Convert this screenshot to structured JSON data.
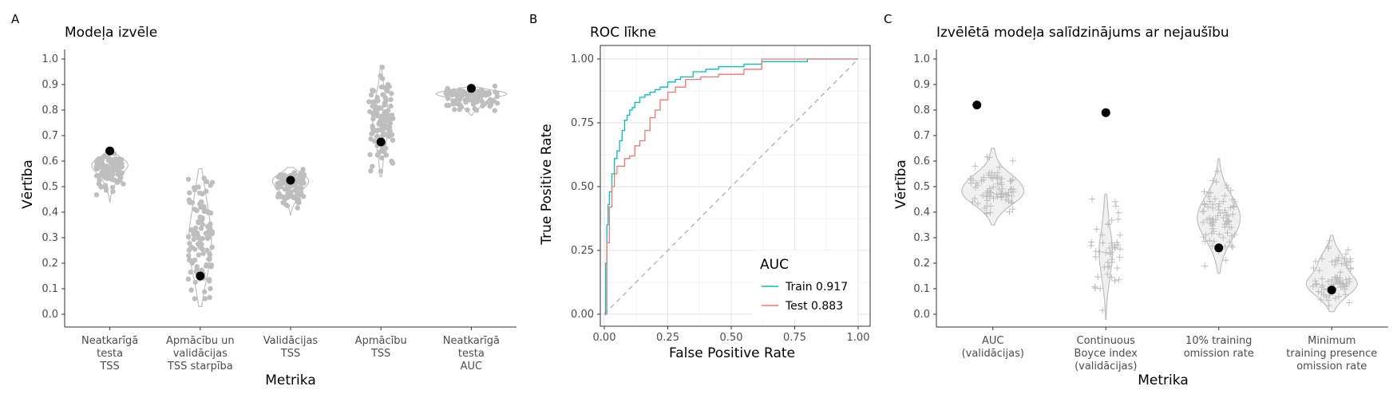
{
  "chart_data": [
    {
      "panel_tag": "A",
      "type": "violin",
      "title": "Modeļa izvēle",
      "xlabel": "Metrika",
      "ylabel": "Vērtība",
      "ylim": [
        0,
        1
      ],
      "yticks": [
        "0.0",
        "0.1",
        "0.2",
        "0.3",
        "0.4",
        "0.5",
        "0.6",
        "0.7",
        "0.8",
        "0.9",
        "1.0"
      ],
      "grid": false,
      "point_color": "#bebebe",
      "violin_fill": "#ffffff",
      "selected_color": "#000000",
      "categories": [
        {
          "label": [
            "Neatkarīgā",
            "testa",
            "TSS"
          ],
          "selected": 0.64,
          "center": 0.58,
          "min": 0.44,
          "max": 0.64,
          "spread": 0.4,
          "distribution": "normal",
          "n": 110
        },
        {
          "label": [
            "Apmācību un",
            "validācijas",
            "TSS starpība"
          ],
          "selected": 0.15,
          "center": 0.25,
          "min": 0.03,
          "max": 0.57,
          "spread": 0.25,
          "distribution": "uniform",
          "n": 110
        },
        {
          "label": [
            "Validācijas",
            "TSS"
          ],
          "selected": 0.525,
          "center": 0.52,
          "min": 0.39,
          "max": 0.575,
          "spread": 0.4,
          "distribution": "normal",
          "n": 110
        },
        {
          "label": [
            "Apmācību",
            "TSS"
          ],
          "selected": 0.675,
          "center": 0.73,
          "min": 0.54,
          "max": 0.975,
          "spread": 0.18,
          "distribution": "uniform",
          "n": 110
        },
        {
          "label": [
            "Neatkarīgā",
            "testa",
            "AUC"
          ],
          "selected": 0.885,
          "center": 0.86,
          "min": 0.78,
          "max": 0.89,
          "spread": 0.78,
          "distribution": "normal",
          "n": 110
        }
      ]
    },
    {
      "panel_tag": "B",
      "type": "line",
      "title": "ROC līkne",
      "xlabel": "False Positive Rate",
      "ylabel": "True Positive Rate",
      "xlim": [
        0,
        1
      ],
      "ylim": [
        0,
        1
      ],
      "xticks": [
        "0.00",
        "0.25",
        "0.50",
        "0.75",
        "1.00"
      ],
      "yticks": [
        "0.00",
        "0.25",
        "0.50",
        "0.75",
        "1.00"
      ],
      "grid": true,
      "legend_title": "AUC",
      "legend_position": "bottom-right",
      "series": [
        {
          "name": "Train 0.917",
          "color": "#00bfc4",
          "x": [
            0,
            0.005,
            0.01,
            0.015,
            0.02,
            0.03,
            0.04,
            0.05,
            0.06,
            0.07,
            0.08,
            0.09,
            0.1,
            0.11,
            0.12,
            0.14,
            0.16,
            0.18,
            0.2,
            0.22,
            0.25,
            0.28,
            0.3,
            0.35,
            0.4,
            0.45,
            0.5,
            0.55,
            0.6,
            0.62,
            0.7,
            0.8,
            0.9,
            1.0
          ],
          "y": [
            0,
            0.2,
            0.35,
            0.43,
            0.48,
            0.55,
            0.61,
            0.64,
            0.68,
            0.72,
            0.76,
            0.78,
            0.8,
            0.81,
            0.83,
            0.85,
            0.86,
            0.87,
            0.88,
            0.89,
            0.91,
            0.92,
            0.93,
            0.95,
            0.96,
            0.97,
            0.97,
            0.98,
            0.98,
            0.99,
            0.99,
            1.0,
            1.0,
            1.0
          ]
        },
        {
          "name": "Test 0.883",
          "color": "#f8766d",
          "x": [
            0,
            0.01,
            0.02,
            0.03,
            0.04,
            0.05,
            0.06,
            0.08,
            0.1,
            0.12,
            0.14,
            0.16,
            0.18,
            0.2,
            0.22,
            0.25,
            0.28,
            0.32,
            0.38,
            0.45,
            0.55,
            0.62,
            0.62,
            1.0
          ],
          "y": [
            0,
            0.28,
            0.42,
            0.5,
            0.55,
            0.58,
            0.58,
            0.61,
            0.62,
            0.66,
            0.68,
            0.72,
            0.77,
            0.8,
            0.84,
            0.87,
            0.89,
            0.92,
            0.93,
            0.94,
            0.96,
            0.96,
            1.0,
            1.0
          ]
        }
      ],
      "reference_line": {
        "x": [
          0,
          1
        ],
        "y": [
          0,
          1
        ],
        "color": "#b3b3b3",
        "style": "dashed"
      }
    },
    {
      "panel_tag": "C",
      "type": "violin",
      "title": "Izvēlētā modeļa salīdzinājums ar nejaušību",
      "xlabel": "Metrika",
      "ylabel": "Vērtība",
      "ylim": [
        0,
        1
      ],
      "yticks": [
        "0.0",
        "0.1",
        "0.2",
        "0.3",
        "0.4",
        "0.5",
        "0.6",
        "0.7",
        "0.8",
        "0.9",
        "1.0"
      ],
      "grid": false,
      "point_color": "#bebebe",
      "violin_fill": "#f0f0f0",
      "selected_color": "#000000",
      "categories": [
        {
          "label": [
            "AUC",
            "(validācijas)"
          ],
          "selected": 0.82,
          "center": 0.48,
          "min": 0.35,
          "max": 0.65,
          "spread": 0.55,
          "distribution": "normal",
          "n": 80
        },
        {
          "label": [
            "Continuous",
            "Boyce index",
            "(validācijas)"
          ],
          "selected": 0.79,
          "center": 0.15,
          "min": -0.02,
          "max": 0.47,
          "spread": 0.12,
          "distribution": "uniform",
          "n": 45
        },
        {
          "label": [
            "10% training",
            "omission rate"
          ],
          "selected": 0.26,
          "center": 0.39,
          "min": 0.16,
          "max": 0.61,
          "spread": 0.38,
          "distribution": "normal",
          "n": 80
        },
        {
          "label": [
            "Minimum",
            "training presence",
            "omission rate"
          ],
          "selected": 0.095,
          "center": 0.13,
          "min": 0.01,
          "max": 0.31,
          "spread": 0.45,
          "distribution": "normal",
          "n": 80
        }
      ]
    }
  ]
}
